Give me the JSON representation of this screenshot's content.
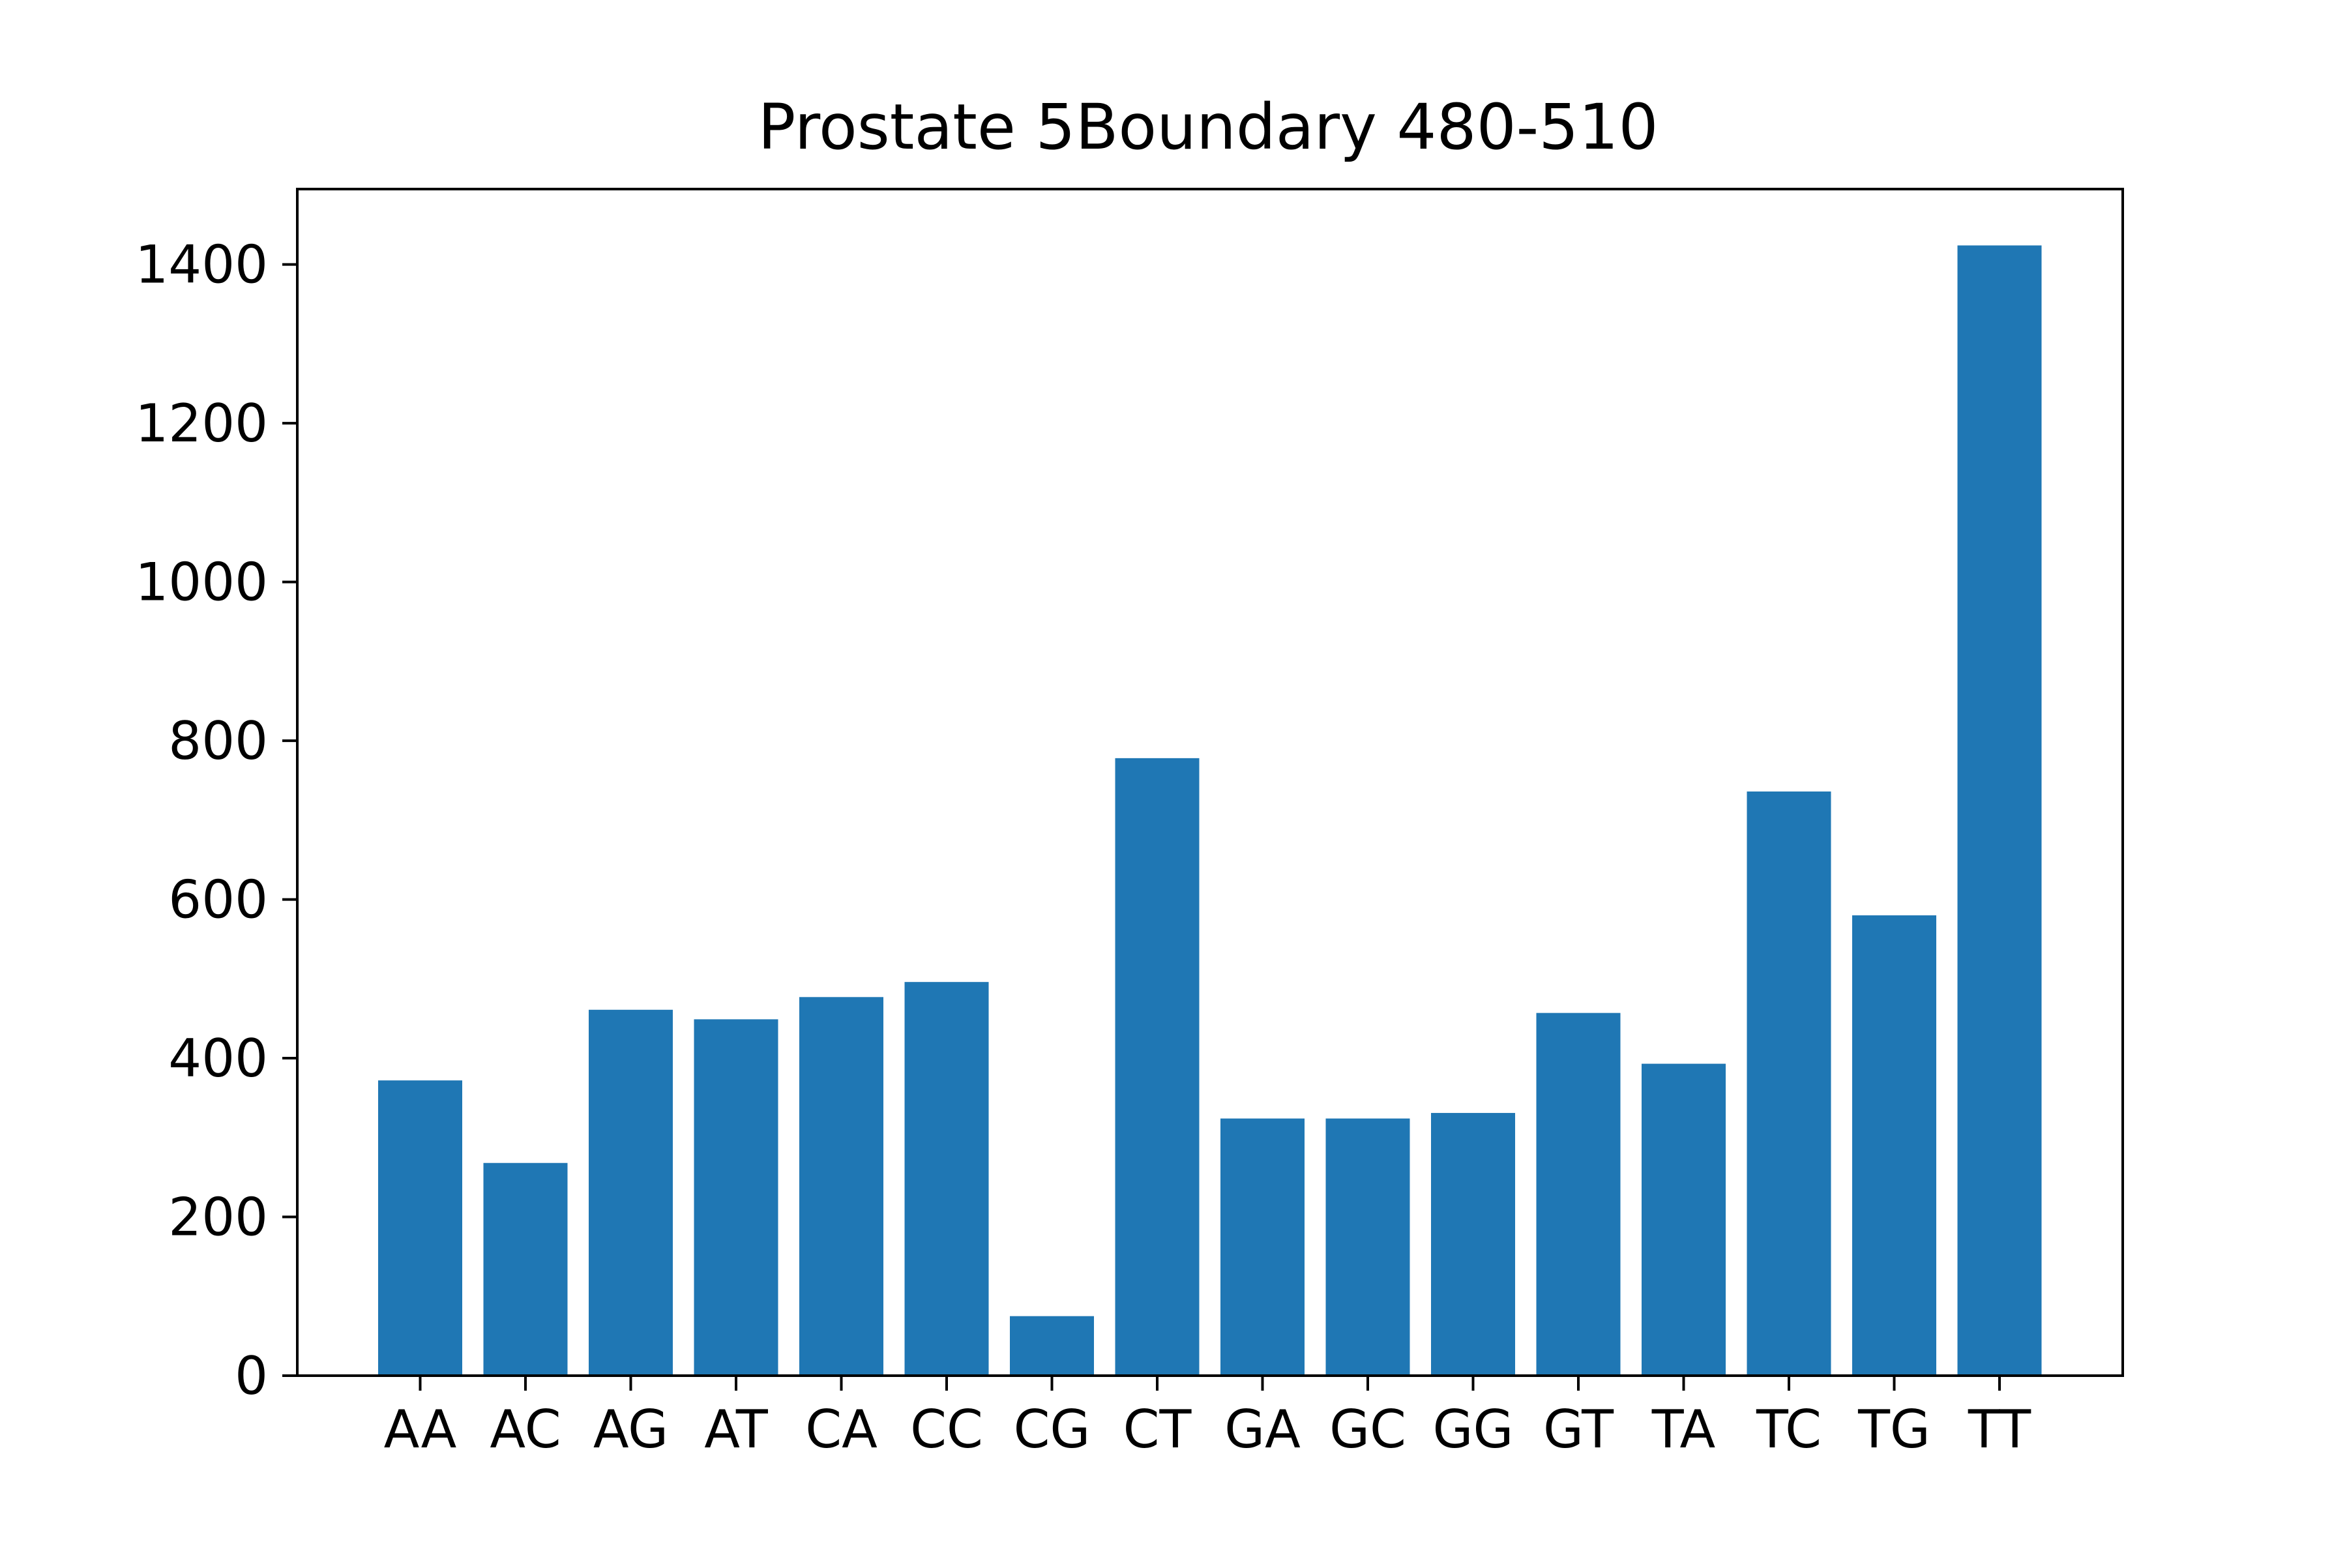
{
  "chart_data": {
    "type": "bar",
    "title": "Prostate 5Boundary 480-510",
    "xlabel": "",
    "ylabel": "",
    "categories": [
      "AA",
      "AC",
      "AG",
      "AT",
      "CA",
      "CC",
      "CG",
      "CT",
      "GA",
      "GC",
      "GG",
      "GT",
      "TA",
      "TC",
      "TG",
      "TT"
    ],
    "values": [
      372,
      268,
      461,
      449,
      477,
      496,
      75,
      778,
      324,
      324,
      331,
      457,
      393,
      736,
      580,
      1424
    ],
    "ylim": [
      0,
      1495
    ],
    "yticks": [
      0,
      200,
      400,
      600,
      800,
      1000,
      1200,
      1400
    ],
    "grid": false,
    "legend": "none",
    "colors": {
      "bar": "#1f77b4",
      "axes": "#000000",
      "background": "#ffffff"
    }
  }
}
